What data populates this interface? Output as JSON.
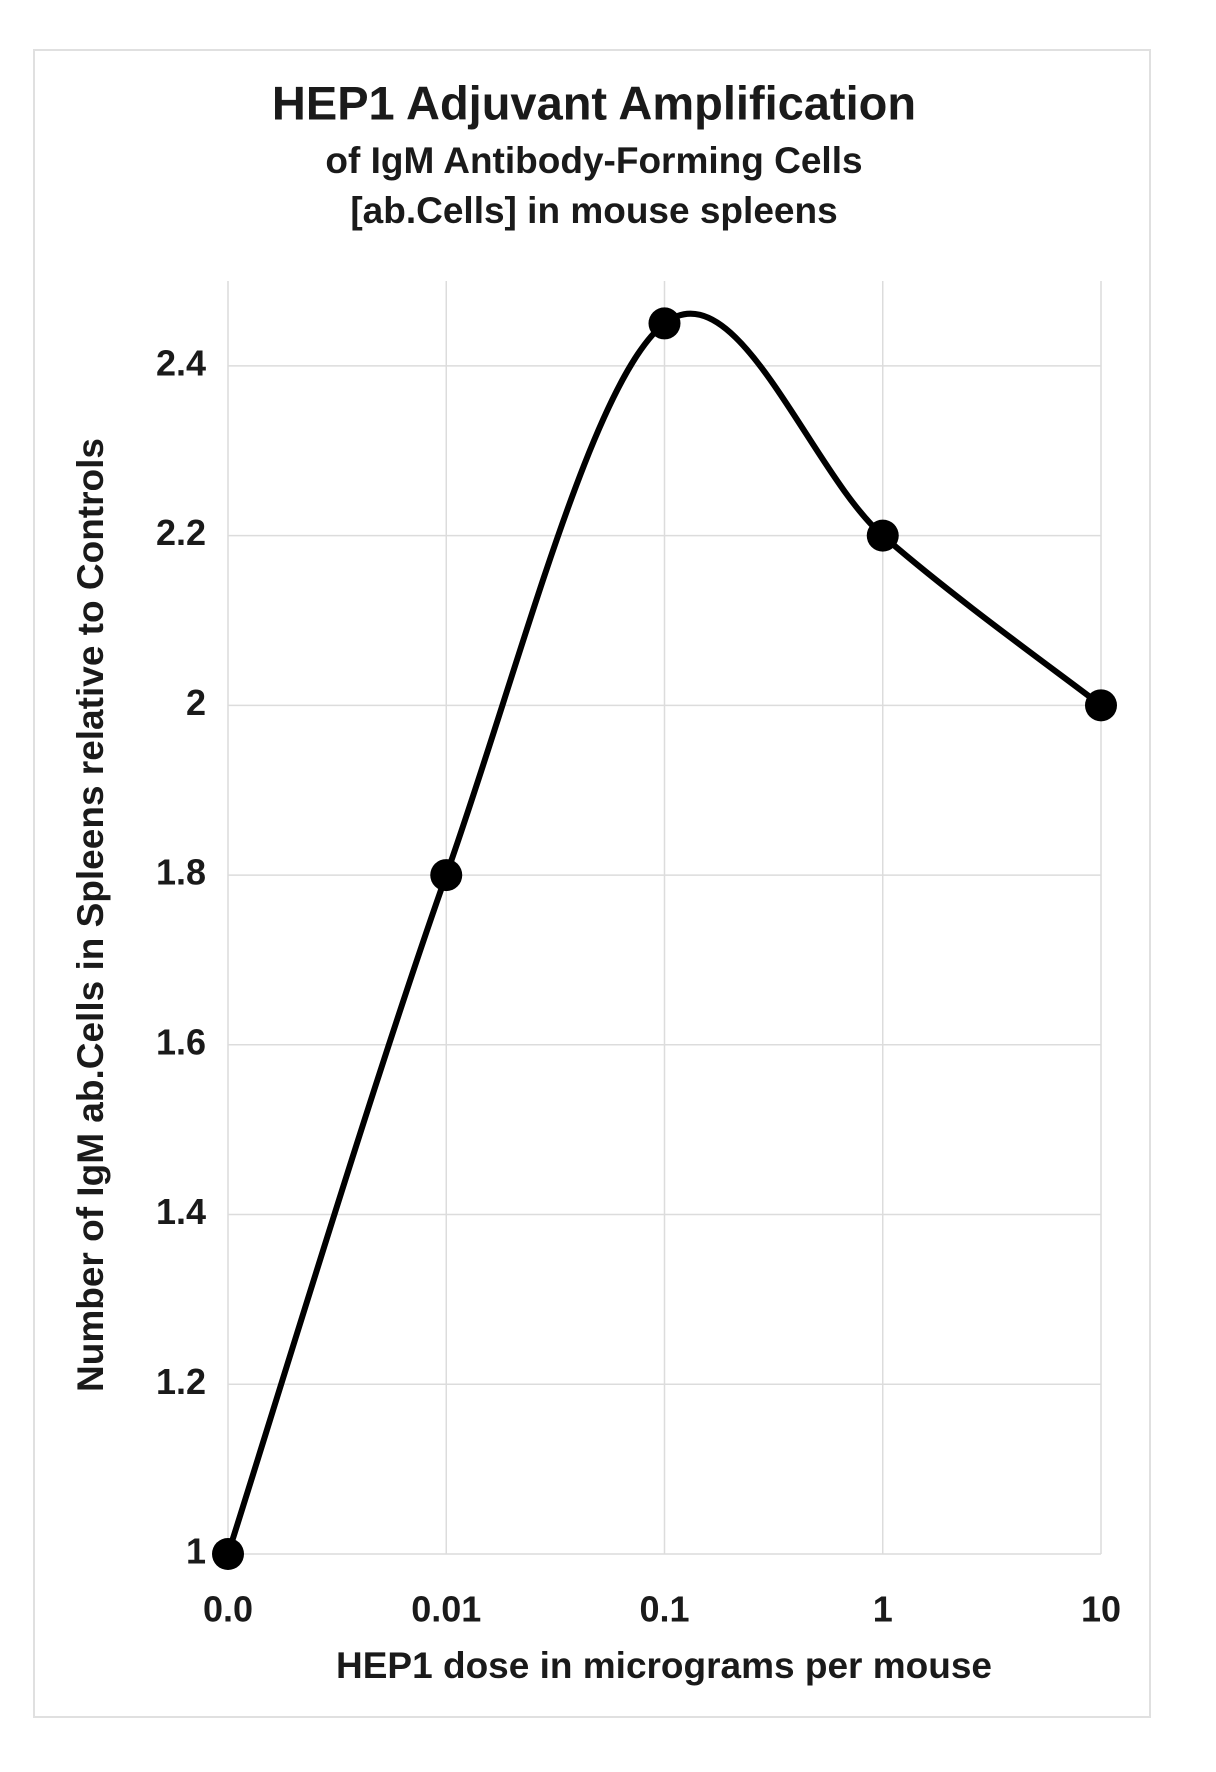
{
  "chart_data": {
    "type": "line",
    "title": "HEP1 Adjuvant Amplification",
    "subtitle": [
      "of IgM Antibody-Forming Cells",
      "[ab.Cells] in mouse spleens"
    ],
    "x_label": "HEP1 dose in micrograms per mouse",
    "y_label": "Number of IgM ab.Cells in Spleens relative to Controls",
    "categories": [
      "0.0",
      "0.01",
      "0.1",
      "1",
      "10"
    ],
    "values": [
      1,
      1.8,
      2.45,
      2.2,
      2
    ],
    "color": "#000000",
    "smooth": true,
    "ylim": [
      1,
      2.5
    ],
    "yticks": [
      1,
      1.2,
      1.4,
      1.6,
      1.8,
      2,
      2.2,
      2.4
    ],
    "grid": true
  }
}
